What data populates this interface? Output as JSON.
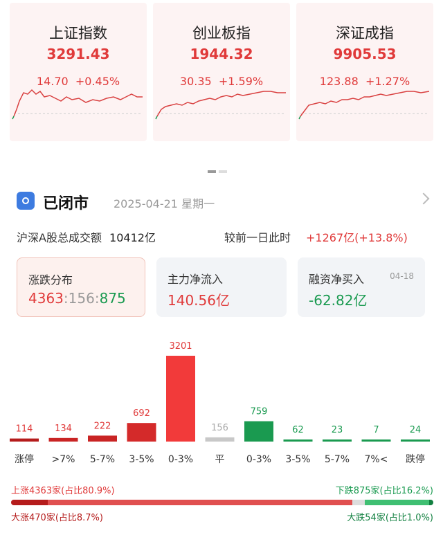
{
  "indices": [
    {
      "name": "上证指数",
      "price": "3291.43",
      "change": "14.70",
      "pct": "+0.45%"
    },
    {
      "name": "创业板指",
      "price": "1944.32",
      "change": "30.35",
      "pct": "+1.59%"
    },
    {
      "name": "深证成指",
      "price": "9905.53",
      "change": "123.88",
      "pct": "+1.27%"
    }
  ],
  "status": {
    "title": "已闭市",
    "date": "2025-04-21 星期一"
  },
  "volume": {
    "label": "沪深A股总成交额",
    "value": "10412亿",
    "compare_label": "较前一日此时",
    "compare_value": "+1267亿(+13.8%)"
  },
  "stats": [
    {
      "title": "涨跌分布",
      "up": "4363",
      "sep1": ":",
      "flat": "156",
      "sep2": ":",
      "down": "875"
    },
    {
      "title": "主力净流入",
      "value": "140.56亿"
    },
    {
      "title": "融资净买入",
      "date": "04-18",
      "value": "-62.82亿"
    }
  ],
  "colors": {
    "up": "#e03a3a",
    "up_dark": "#b51c1c",
    "down": "#1a9a50",
    "flat": "#c8c8c8"
  },
  "chart_data": {
    "type": "bar",
    "categories": [
      "涨停",
      ">7%",
      "5-7%",
      "3-5%",
      "0-3%",
      "平",
      "0-3%",
      "3-5%",
      "5-7%",
      "7%<",
      "跌停"
    ],
    "values": [
      114,
      134,
      222,
      692,
      3201,
      156,
      759,
      62,
      23,
      7,
      24
    ],
    "ylim": [
      0,
      3201
    ]
  },
  "summary": {
    "up_text": "上涨4363家(占比80.9%)",
    "down_text": "下跌875家(占比16.2%)",
    "big_up_text": "大涨470家(占比8.7%)",
    "big_down_text": "大跌54家(占比1.0%)",
    "up_share": 80.9,
    "down_share": 16.2,
    "big_up_share": 8.7,
    "big_down_share": 1.0
  }
}
